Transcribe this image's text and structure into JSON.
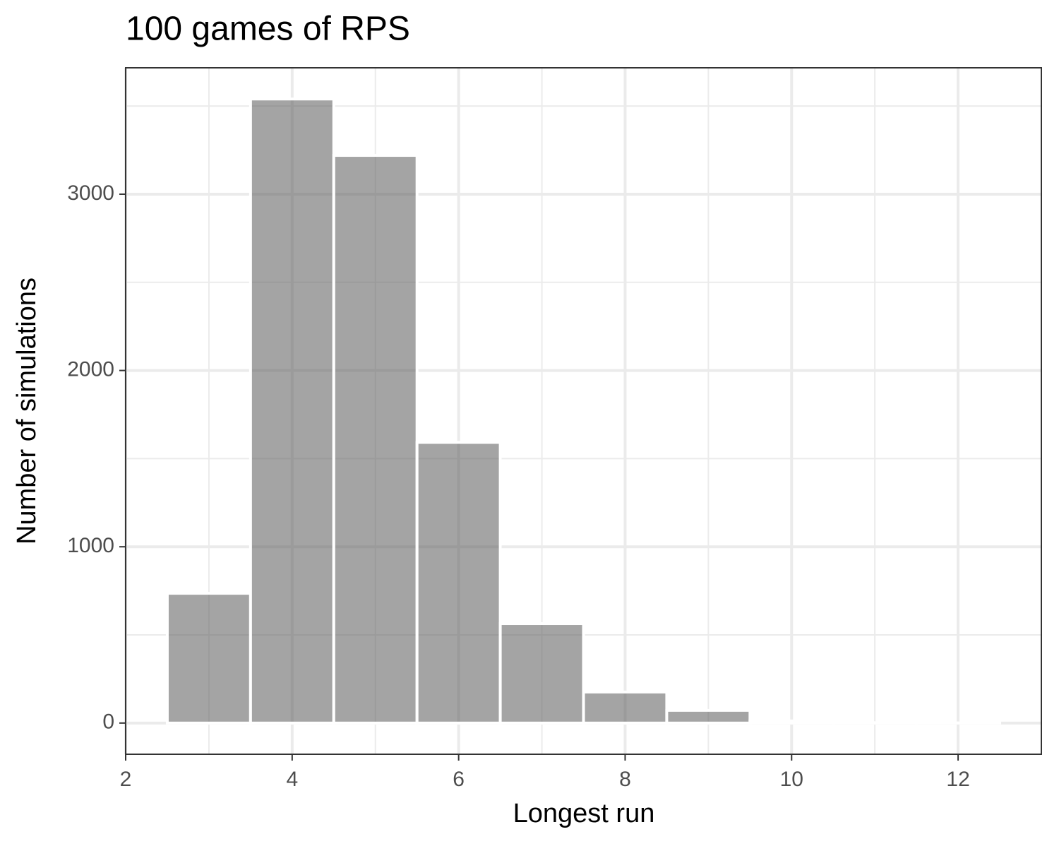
{
  "chart_data": {
    "type": "histogram",
    "title": "100 games of RPS",
    "x_label": "Longest run",
    "y_label": "Number of simulations",
    "bins": [
      2.5,
      3.5,
      4.5,
      5.5,
      6.5,
      7.5,
      8.5,
      9.5,
      10.5,
      11.5,
      12.5
    ],
    "values": [
      736,
      3540,
      3220,
      1592,
      564,
      176,
      72,
      12,
      2,
      1
    ],
    "color": "#5a5a5a",
    "opacity": 0.55,
    "edge_color": "#ffffff",
    "xlim": [
      2,
      13
    ],
    "ylim": [
      -177,
      3717
    ],
    "xticks": [
      2,
      4,
      6,
      8,
      10,
      12
    ],
    "yticks": [
      0,
      1000,
      2000,
      3000
    ],
    "x_minor_grid": [
      3,
      5,
      7,
      9,
      11
    ],
    "y_minor_grid": [
      500,
      1500,
      2500,
      3500
    ],
    "grid": true
  }
}
